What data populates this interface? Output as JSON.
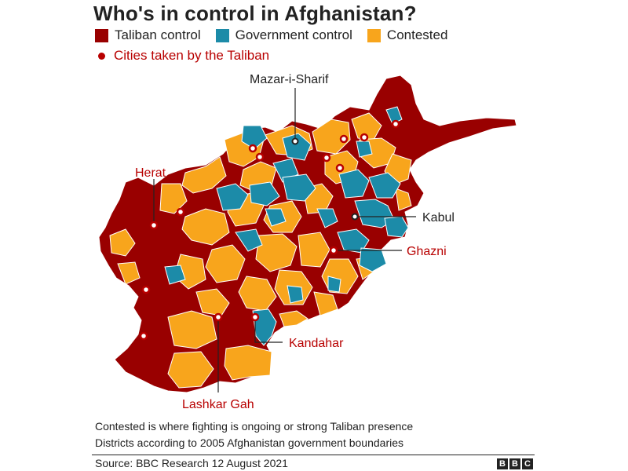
{
  "title": "Who's in control in Afghanistan?",
  "legend": {
    "taliban": {
      "label": "Taliban control",
      "color": "#990000"
    },
    "government": {
      "label": "Government control",
      "color": "#1c8ba8"
    },
    "contested": {
      "label": "Contested",
      "color": "#f8a51c"
    },
    "cities": {
      "label": "Cities taken by the Taliban",
      "color": "#b80000"
    }
  },
  "labels": {
    "mazar": "Mazar-i-Sharif",
    "herat": "Herat",
    "kabul": "Kabul",
    "ghazni": "Ghazni",
    "kandahar": "Kandahar",
    "lashkar": "Lashkar Gah"
  },
  "notes": {
    "line1": "Contested is where fighting is ongoing or strong Taliban presence",
    "line2": "Districts according to 2005 Afghanistan government boundaries"
  },
  "source": "Source: BBC Research 12 August 2021",
  "logo": [
    "B",
    "B",
    "C"
  ]
}
